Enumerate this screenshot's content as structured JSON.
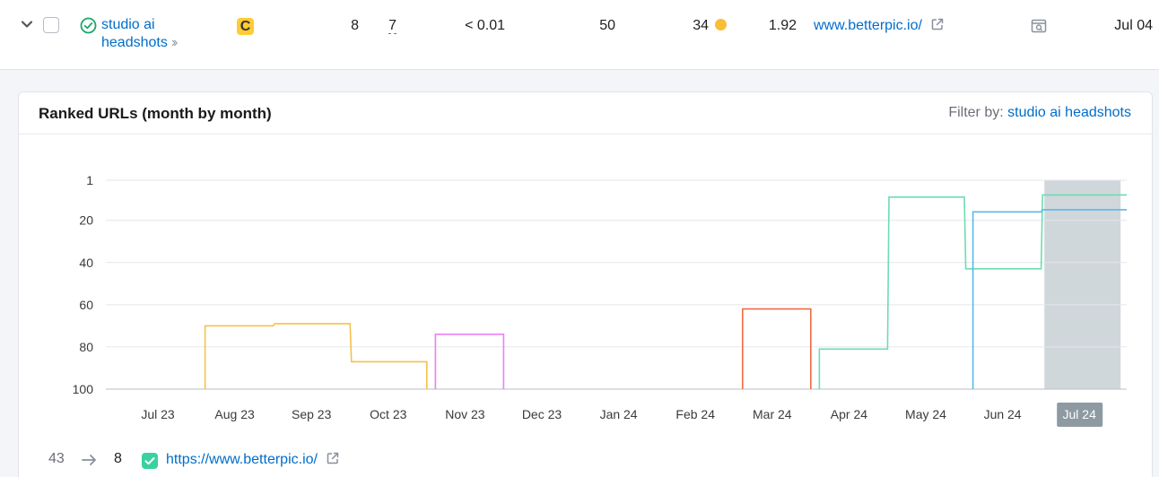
{
  "row": {
    "keyword_line1": "studio ai",
    "keyword_line2": "headshots",
    "intent_badge": "C",
    "position": "8",
    "serp_features": "7",
    "traffic_pct": "< 0.01",
    "volume": "50",
    "kd": "34",
    "cpc": "1.92",
    "url": "www.betterpic.io/",
    "updated": "Jul 04",
    "kd_color": "#f9bd36",
    "intent_color": "#ffcc33"
  },
  "panel": {
    "title": "Ranked URLs (month by month)",
    "filter_label": "Filter by:",
    "filter_value": "studio ai headshots"
  },
  "legend": {
    "previous_position": "43",
    "current_position": "8",
    "url": "https://www.betterpic.io/",
    "color": "#3ad1a0"
  },
  "chart_data": {
    "type": "line",
    "title": "Ranked URLs (month by month)",
    "x": [
      "Jul 23",
      "Aug 23",
      "Sep 23",
      "Oct 23",
      "Nov 23",
      "Dec 23",
      "Jan 24",
      "Feb 24",
      "Mar 24",
      "Apr 24",
      "May 24",
      "Jun 24",
      "Jul 24"
    ],
    "y_ticks": [
      1,
      20,
      40,
      60,
      80,
      100
    ],
    "ylim": [
      1,
      100
    ],
    "y_inverted": true,
    "highlighted_x": "Jul 24",
    "grid": true,
    "series": [
      {
        "color": "#f5c14b",
        "points": [
          [
            "Aug 23",
            70
          ],
          [
            "Sep 23",
            69
          ],
          [
            "Oct 23",
            87
          ]
        ]
      },
      {
        "color": "#f07ef5",
        "points": [
          [
            "Nov 23",
            74
          ]
        ]
      },
      {
        "color": "#ef6b45",
        "points": [
          [
            "Mar 24",
            62
          ]
        ]
      },
      {
        "color": "#6fdcb0",
        "points": [
          [
            "Apr 24",
            81
          ],
          [
            "May 24",
            9
          ],
          [
            "Jun 24",
            43
          ],
          [
            "Jul 24",
            8
          ]
        ]
      },
      {
        "color": "#5ab8ea",
        "points": [
          [
            "Jun 24",
            16
          ],
          [
            "Jul 24",
            15
          ]
        ]
      }
    ]
  }
}
